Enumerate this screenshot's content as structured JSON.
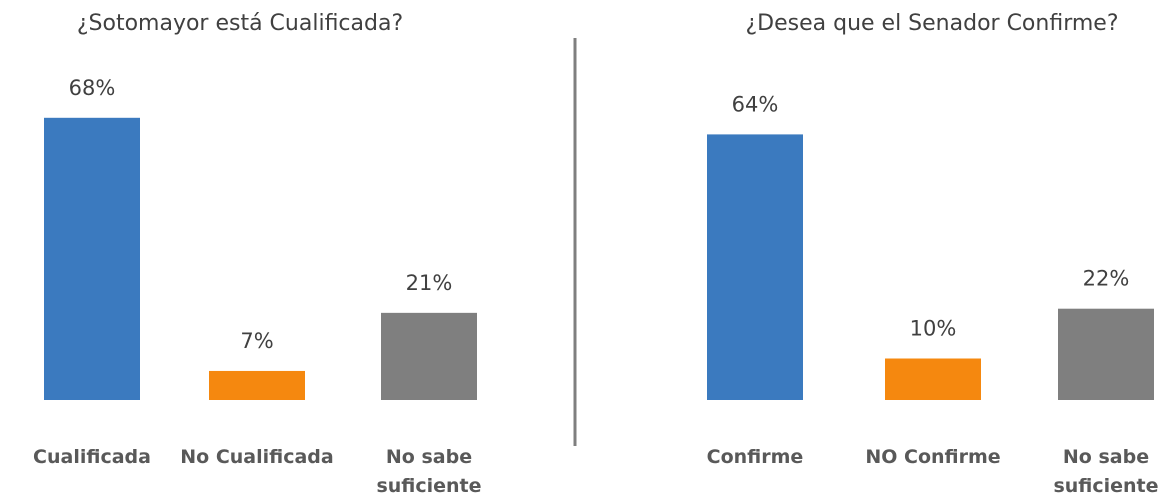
{
  "colors": {
    "blue": "#3b7abf",
    "orange": "#f5880f",
    "gray": "#7f7f7f"
  },
  "chart_data": [
    {
      "type": "bar",
      "title": "¿Sotomayor está Cualificada?",
      "categories": [
        [
          "Cualificada"
        ],
        [
          "No Cualificada"
        ],
        [
          "No sabe",
          "suficiente"
        ]
      ],
      "values": [
        68,
        7,
        21
      ],
      "value_labels": [
        "68%",
        "7%",
        "21%"
      ],
      "bar_colors": [
        "#3b7abf",
        "#f5880f",
        "#7f7f7f"
      ],
      "xlabel": "",
      "ylabel": "",
      "ylim": [
        0,
        70
      ],
      "grid": false,
      "legend": "none"
    },
    {
      "type": "bar",
      "title": "¿Desea que el Senador Confirme?",
      "categories": [
        [
          "Confirme"
        ],
        [
          "NO Confirme"
        ],
        [
          "No sabe",
          "suficiente"
        ]
      ],
      "values": [
        64,
        10,
        22
      ],
      "value_labels": [
        "64%",
        "10%",
        "22%"
      ],
      "bar_colors": [
        "#3b7abf",
        "#f5880f",
        "#7f7f7f"
      ],
      "xlabel": "",
      "ylabel": "",
      "ylim": [
        0,
        70
      ],
      "grid": false,
      "legend": "none"
    }
  ]
}
